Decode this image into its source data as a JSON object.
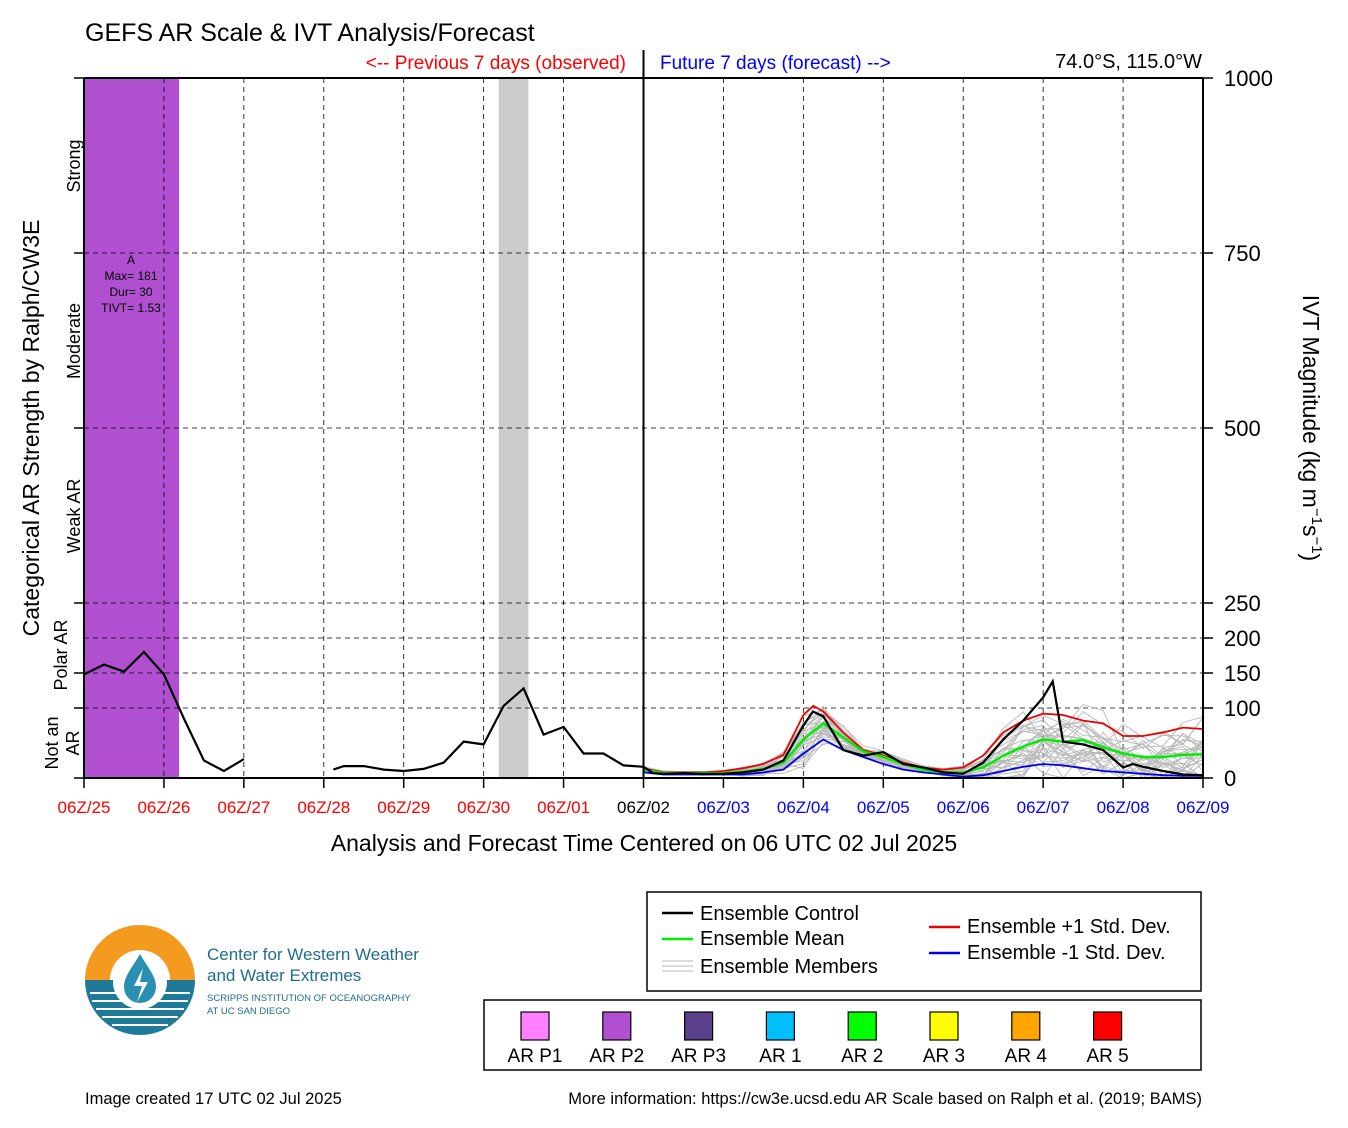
{
  "title": "GEFS AR Scale & IVT Analysis/Forecast",
  "prev_label": "<-- Previous 7 days (observed)",
  "future_label": "Future 7 days (forecast) -->",
  "location": "74.0°S, 115.0°W",
  "xlabel": "Analysis and Forecast Time Centered on 06 UTC 02 Jul 2025",
  "left_ylabel": "Categorical AR Strength by Ralph/CW3E",
  "right_ylabel_parts": {
    "base": "IVT Magnitude (kg m",
    "sup1": "−1",
    "mid": "s",
    "sup2": "−1",
    "end": ")"
  },
  "categories": [
    {
      "label": "Strong",
      "from": 750,
      "to": 1000
    },
    {
      "label": "Moderate",
      "from": 500,
      "to": 750
    },
    {
      "label": "Weak AR",
      "from": 250,
      "to": 500
    },
    {
      "label_lines": [
        "Polar AR",
        ""
      ],
      "from": 150,
      "to": 250
    },
    {
      "label_lines": [
        "Not an",
        "AR"
      ],
      "from": 0,
      "to": 100
    }
  ],
  "event_annotation": {
    "lines": [
      "A",
      "Max= 181",
      "Dur= 30",
      "TIVT= 1.53"
    ],
    "x": 0.6,
    "y": 700
  },
  "legend": {
    "control": "Ensemble Control",
    "mean": "Ensemble Mean",
    "members": "Ensemble Members",
    "plus": "Ensemble +1 Std. Dev.",
    "minus": "Ensemble -1 Std. Dev."
  },
  "ar_scale_legend": [
    {
      "label": "AR P1",
      "color": "#ff80ff"
    },
    {
      "label": "AR P2",
      "color": "#b050d0"
    },
    {
      "label": "AR P3",
      "color": "#5a3f8a"
    },
    {
      "label": "AR 1",
      "color": "#00bfff"
    },
    {
      "label": "AR 2",
      "color": "#00ff00"
    },
    {
      "label": "AR 3",
      "color": "#ffff00"
    },
    {
      "label": "AR 4",
      "color": "#ffa500"
    },
    {
      "label": "AR 5",
      "color": "#ff0000"
    }
  ],
  "logo": {
    "line1": "Center for Western Weather",
    "line2": "and Water Extremes",
    "line3": "SCRIPPS INSTITUTION OF OCEANOGRAPHY",
    "line4": "AT UC SAN DIEGO"
  },
  "footer_left": "Image created 17 UTC 02 Jul 2025",
  "footer_right": "More information: https://cw3e.ucsd.edu AR Scale based on Ralph et al. (2019; BAMS)",
  "colors": {
    "observed": "#ff0000",
    "forecast": "#0000ff",
    "control": "#000000",
    "mean": "#00ee00",
    "plus_std": "#ee0000",
    "minus_std": "#0000ee",
    "members": "#b8b8b8",
    "ar_p2_shading": "#b050d0",
    "gray_shading": "#cccccc"
  },
  "chart_data": {
    "type": "line",
    "x_unit": "days relative to 06Z/25",
    "xlim": [
      0,
      14
    ],
    "ylim": [
      0,
      1000
    ],
    "x_tick_labels": [
      "06Z/25",
      "06Z/26",
      "06Z/27",
      "06Z/28",
      "06Z/29",
      "06Z/30",
      "06Z/01",
      "06Z/02",
      "06Z/03",
      "06Z/04",
      "06Z/05",
      "06Z/06",
      "06Z/07",
      "06Z/08",
      "06Z/09"
    ],
    "x_tick_colors": [
      "#ff0000",
      "#ff0000",
      "#ff0000",
      "#ff0000",
      "#ff0000",
      "#ff0000",
      "#ff0000",
      "#000000",
      "#0000ff",
      "#0000ff",
      "#0000ff",
      "#0000ff",
      "#0000ff",
      "#0000ff",
      "#0000ff"
    ],
    "right_y_ticks": [
      0,
      100,
      150,
      200,
      250,
      500,
      750,
      1000
    ],
    "grid": true,
    "shaded_periods": [
      {
        "type": "AR P2",
        "x": [
          0,
          1.19
        ]
      },
      {
        "type": "gray",
        "x": [
          5.19,
          5.56
        ]
      }
    ],
    "observed_ivt": [
      [
        [
          0,
          148
        ],
        [
          0.25,
          162
        ],
        [
          0.5,
          152
        ],
        [
          0.75,
          180
        ],
        [
          1,
          148
        ],
        [
          1.25,
          85
        ],
        [
          1.5,
          25
        ],
        [
          1.75,
          10
        ],
        [
          2,
          27
        ]
      ],
      [
        [
          3.12,
          12
        ],
        [
          3.25,
          17
        ],
        [
          3.5,
          17
        ],
        [
          3.75,
          12
        ],
        [
          4,
          10
        ],
        [
          4.25,
          13
        ],
        [
          4.5,
          22
        ],
        [
          4.75,
          52
        ],
        [
          5,
          48
        ],
        [
          5.25,
          103
        ],
        [
          5.5,
          128
        ],
        [
          5.75,
          62
        ],
        [
          6,
          73
        ],
        [
          6.25,
          35
        ],
        [
          6.5,
          35
        ],
        [
          6.75,
          18
        ],
        [
          7,
          16
        ]
      ]
    ],
    "series": [
      {
        "name": "Ensemble Control",
        "x": [
          7,
          7.12,
          7.25,
          7.5,
          7.75,
          8,
          8.25,
          8.5,
          8.75,
          9,
          9.12,
          9.25,
          9.5,
          9.75,
          10,
          10.25,
          10.5,
          10.75,
          11,
          11.25,
          11.5,
          11.75,
          12,
          12.12,
          12.25,
          12.5,
          12.75,
          13,
          13.12,
          13.25,
          13.5,
          13.75,
          14
        ],
        "y": [
          16,
          7,
          6,
          7,
          6,
          6,
          8,
          12,
          25,
          75,
          95,
          88,
          40,
          32,
          37,
          20,
          15,
          8,
          6,
          22,
          55,
          82,
          115,
          138,
          52,
          48,
          40,
          15,
          20,
          16,
          10,
          5,
          4
        ]
      },
      {
        "name": "Ensemble Mean",
        "x": [
          7,
          7.25,
          7.5,
          7.75,
          8,
          8.25,
          8.5,
          8.75,
          9,
          9.25,
          9.5,
          9.75,
          10,
          10.25,
          10.5,
          10.75,
          11,
          11.25,
          11.5,
          11.75,
          12,
          12.25,
          12.5,
          12.75,
          13,
          13.25,
          13.5,
          13.75,
          14
        ],
        "y": [
          12,
          7,
          7,
          7,
          7,
          9,
          13,
          22,
          55,
          78,
          58,
          38,
          30,
          20,
          12,
          8,
          8,
          15,
          32,
          45,
          55,
          52,
          54,
          44,
          35,
          30,
          30,
          33,
          34
        ]
      },
      {
        "name": "Ensemble +1 Std. Dev.",
        "x": [
          7,
          7.25,
          7.5,
          7.75,
          8,
          8.25,
          8.5,
          8.75,
          9,
          9.125,
          9.25,
          9.5,
          9.75,
          10,
          10.25,
          10.5,
          10.75,
          11,
          11.25,
          11.5,
          11.75,
          12,
          12.25,
          12.5,
          12.75,
          13,
          13.25,
          13.5,
          13.75,
          14
        ],
        "y": [
          14,
          8,
          8,
          8,
          10,
          14,
          20,
          33,
          90,
          103,
          95,
          65,
          40,
          32,
          22,
          15,
          12,
          15,
          32,
          65,
          82,
          92,
          90,
          82,
          78,
          60,
          60,
          65,
          72,
          70
        ]
      },
      {
        "name": "Ensemble -1 Std. Dev.",
        "x": [
          7,
          7.25,
          7.5,
          7.75,
          8,
          8.25,
          8.5,
          8.75,
          9,
          9.25,
          9.5,
          9.75,
          10,
          10.25,
          10.5,
          10.75,
          11,
          11.25,
          11.5,
          11.75,
          12,
          12.25,
          12.5,
          12.75,
          13,
          13.25,
          13.5,
          13.75,
          14
        ],
        "y": [
          8,
          5,
          5,
          5,
          5,
          5,
          8,
          12,
          35,
          55,
          40,
          30,
          20,
          12,
          8,
          5,
          2,
          4,
          10,
          16,
          20,
          18,
          14,
          10,
          8,
          6,
          4,
          3,
          3
        ]
      }
    ],
    "members_count": 30
  }
}
